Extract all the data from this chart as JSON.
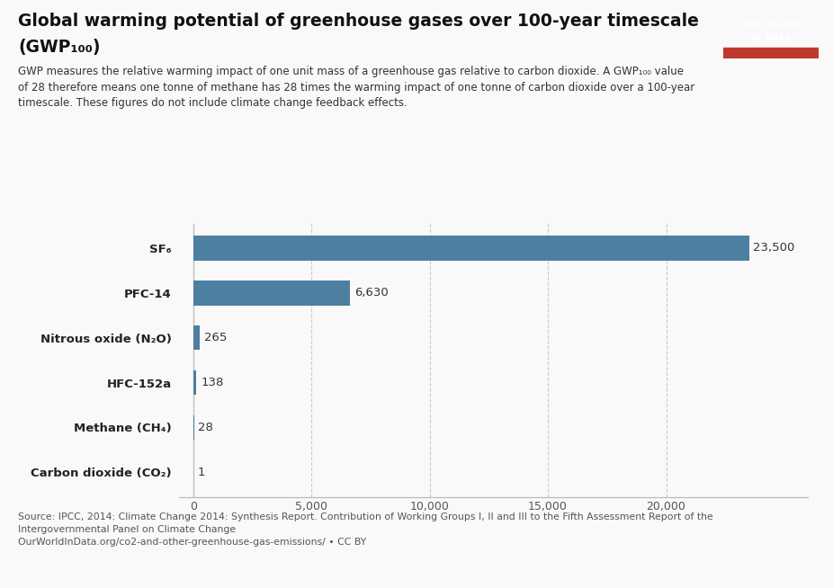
{
  "title_line1": "Global warming potential of greenhouse gases over 100-year timescale",
  "title_line2": "(GWP₁₀₀)",
  "subtitle": "GWP measures the relative warming impact of one unit mass of a greenhouse gas relative to carbon dioxide. A GWP₁₀₀ value\nof 28 therefore means one tonne of methane has 28 times the warming impact of one tonne of carbon dioxide over a 100-year\ntimescale. These figures do not include climate change feedback effects.",
  "categories": [
    "SF₆",
    "PFC-14",
    "Nitrous oxide (N₂O)",
    "HFC-152a",
    "Methane (CH₄)",
    "Carbon dioxide (CO₂)"
  ],
  "values": [
    23500,
    6630,
    265,
    138,
    28,
    1
  ],
  "bar_color": "#4d7fa0",
  "value_labels": [
    "23,500",
    "6,630",
    "265",
    "138",
    "28",
    "1"
  ],
  "xlim": [
    -600,
    26000
  ],
  "xticks": [
    0,
    5000,
    10000,
    15000,
    20000
  ],
  "xticklabels": [
    "0",
    "5,000",
    "10,000",
    "15,000",
    "20,000"
  ],
  "background_color": "#f9f9f9",
  "bar_height": 0.55,
  "source_text": "Source: IPCC, 2014: Climate Change 2014: Synthesis Report. Contribution of Working Groups I, II and III to the Fifth Assessment Report of the\nIntergovernmental Panel on Climate Change\nOurWorldInData.org/co2-and-other-greenhouse-gas-emissions/ • CC BY",
  "logo_bg_dark": "#0d2b5e",
  "logo_bg_red": "#c0392b",
  "grid_color": "#cccccc",
  "spine_color": "#bbbbbb",
  "title_fontsize": 13.5,
  "subtitle_fontsize": 8.5,
  "label_fontsize": 9.5,
  "value_fontsize": 9.5,
  "source_fontsize": 7.8
}
